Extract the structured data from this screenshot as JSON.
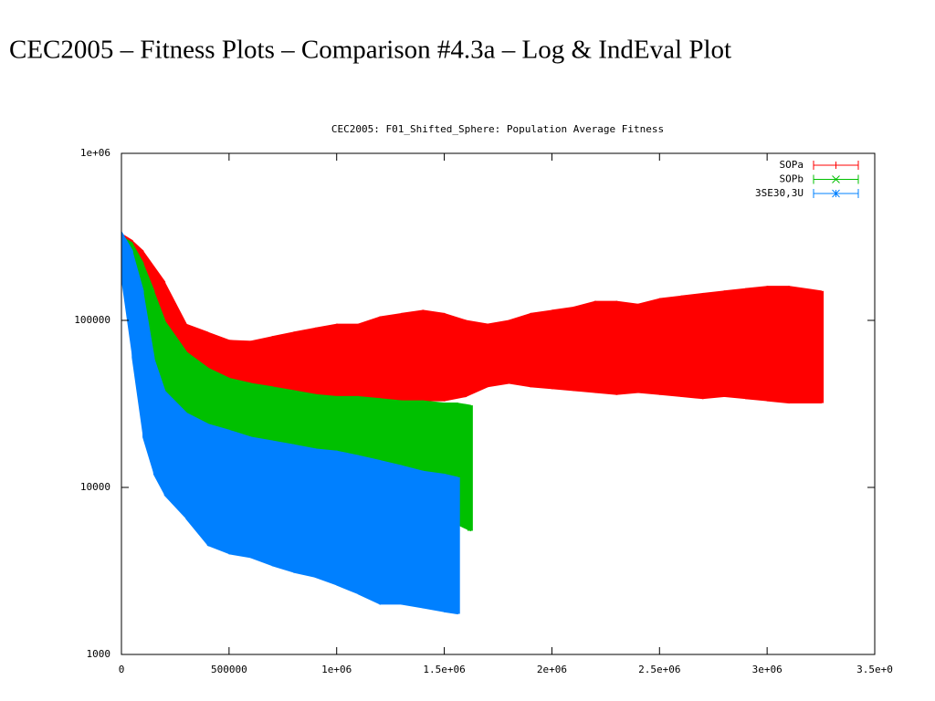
{
  "slide_title": "CEC2005 – Fitness Plots – Comparison #4.3a – Log & IndEval Plot",
  "chart_data": {
    "type": "errorband",
    "title": "CEC2005: F01_Shifted_Sphere: Population Average Fitness",
    "log_y": true,
    "legend": "top-right",
    "xlim": [
      0,
      3500000
    ],
    "xticks": [
      0,
      500000,
      {
        "value": 1000000,
        "label": "1e+06"
      },
      {
        "value": 1500000,
        "label": "1.5e+06"
      },
      {
        "value": 2000000,
        "label": "2e+06"
      },
      {
        "value": 2500000,
        "label": "2.5e+06"
      },
      {
        "value": 3000000,
        "label": "3e+06"
      },
      {
        "value": 3500000,
        "label": "3.5e+0"
      }
    ],
    "ylim": [
      1000,
      1000000
    ],
    "yticks": [
      1000,
      10000,
      100000,
      {
        "value": 1000000,
        "label": "1e+06"
      }
    ],
    "series": [
      {
        "name": "SOPa",
        "color": "#ff0000",
        "marker": "+",
        "x": [
          0,
          50000,
          100000,
          200000,
          300000,
          400000,
          500000,
          600000,
          700000,
          800000,
          900000,
          1000000,
          1100000,
          1200000,
          1300000,
          1400000,
          1500000,
          1600000,
          1700000,
          1800000,
          1900000,
          2000000,
          2100000,
          2200000,
          2300000,
          2400000,
          2500000,
          2600000,
          2700000,
          2800000,
          2900000,
          3000000,
          3100000,
          3250000
        ],
        "values": [
          265000,
          240000,
          200000,
          120000,
          72500,
          65000,
          58000,
          56500,
          58500,
          60500,
          62500,
          65000,
          64500,
          69500,
          71500,
          74000,
          71500,
          67500,
          67500,
          71000,
          75000,
          77000,
          79000,
          83500,
          83000,
          81000,
          85500,
          87500,
          89500,
          92500,
          94500,
          96500,
          96000,
          91000
        ],
        "errors": [
          65000,
          60000,
          60000,
          50000,
          22500,
          20000,
          18000,
          18500,
          21500,
          24500,
          27500,
          30000,
          30500,
          35500,
          38500,
          41000,
          38500,
          32500,
          27500,
          29000,
          35000,
          38000,
          41000,
          46500,
          47000,
          44000,
          49500,
          52500,
          55500,
          57500,
          60500,
          63500,
          64000,
          59000
        ]
      },
      {
        "name": "SOPb",
        "color": "#00c000",
        "marker": "x",
        "x": [
          0,
          50000,
          100000,
          150000,
          200000,
          300000,
          400000,
          500000,
          600000,
          700000,
          800000,
          900000,
          1000000,
          1100000,
          1200000,
          1300000,
          1400000,
          1500000,
          1560000,
          1620000
        ],
        "values": [
          260000,
          220000,
          155000,
          100000,
          67500,
          45000,
          36000,
          31500,
          29500,
          28000,
          26750,
          25500,
          24750,
          24500,
          23750,
          23000,
          22750,
          22000,
          19000,
          18250
        ],
        "errors": [
          60000,
          70000,
          65000,
          50000,
          32500,
          20000,
          16000,
          13500,
          12500,
          12000,
          11250,
          10500,
          10250,
          10500,
          10250,
          10000,
          10250,
          10000,
          13000,
          12750
        ]
      },
      {
        "name": "3SE30,3U",
        "color": "#0080ff",
        "marker": "*",
        "x": [
          0,
          50000,
          100000,
          150000,
          200000,
          300000,
          400000,
          500000,
          600000,
          700000,
          800000,
          900000,
          1000000,
          1100000,
          1200000,
          1300000,
          1400000,
          1500000,
          1560000
        ],
        "values": [
          260000,
          160000,
          85000,
          36000,
          23500,
          17250,
          14250,
          13000,
          11900,
          11200,
          10550,
          9950,
          9550,
          8900,
          8250,
          7750,
          7200,
          6900,
          6625
        ],
        "errors": [
          80000,
          100000,
          65000,
          24000,
          14500,
          10750,
          9750,
          9000,
          8100,
          7800,
          7450,
          7050,
          6950,
          6600,
          6250,
          5750,
          5300,
          5100,
          4875
        ]
      }
    ]
  }
}
